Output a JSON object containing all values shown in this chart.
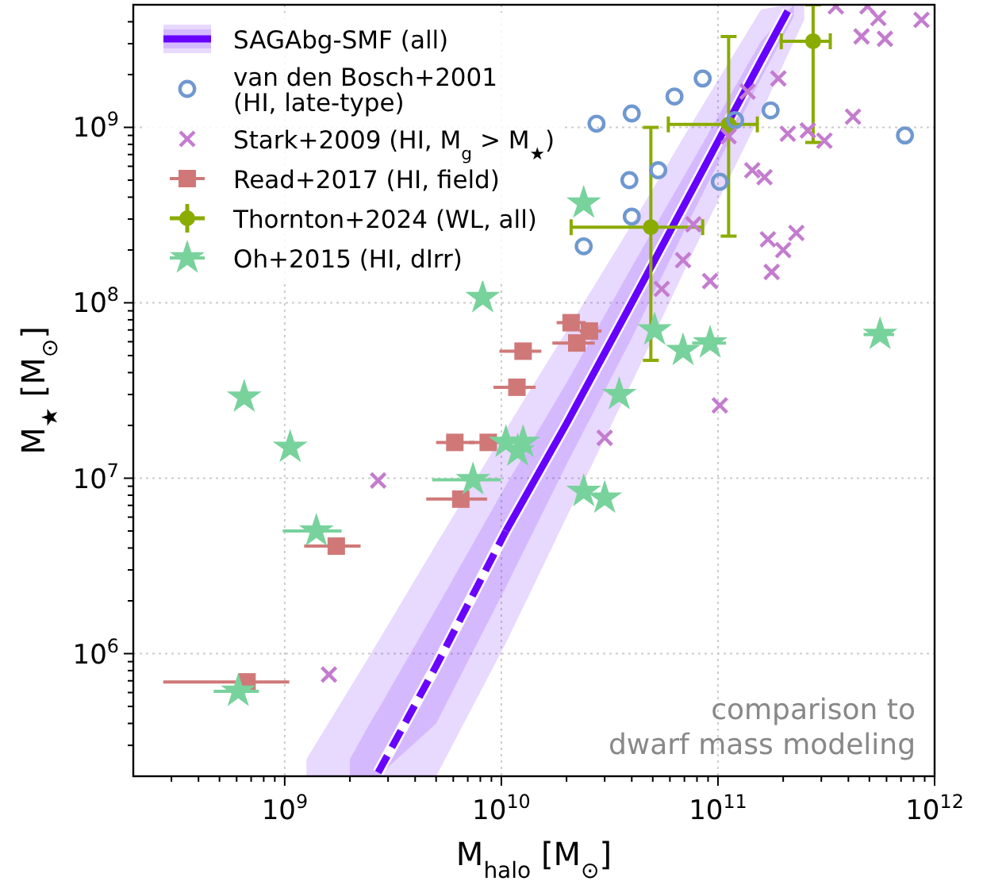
{
  "chart_data": {
    "type": "scatter",
    "xlabel": "M$_{halo}$ [M$_{⊙}$]",
    "ylabel": "M$_{★}$ [M$_{⊙}$]",
    "log": "xy",
    "grid": true,
    "legend": "top left",
    "xlim": [
      200000000.0,
      1000000000000.0
    ],
    "ylim": [
      200000.0,
      5000000000.0
    ],
    "xticks": [
      {
        "value": 300000000.0,
        "label": null
      },
      {
        "value": 400000000.0,
        "label": null
      },
      {
        "value": 500000000.0,
        "label": null
      },
      {
        "value": 600000000.0,
        "label": null
      },
      {
        "value": 700000000.0,
        "label": null
      },
      {
        "value": 800000000.0,
        "label": null
      },
      {
        "value": 900000000.0,
        "label": null
      },
      {
        "value": 1000000000.0,
        "label": "10$^{9}$"
      },
      {
        "value": 2000000000.0,
        "label": null
      },
      {
        "value": 3000000000.0,
        "label": null
      },
      {
        "value": 4000000000.0,
        "label": null
      },
      {
        "value": 5000000000.0,
        "label": null
      },
      {
        "value": 6000000000.0,
        "label": null
      },
      {
        "value": 7000000000.0,
        "label": null
      },
      {
        "value": 8000000000.0,
        "label": null
      },
      {
        "value": 9000000000.0,
        "label": null
      },
      {
        "value": 10000000000.0,
        "label": "10$^{10}$"
      },
      {
        "value": 20000000000.0,
        "label": null
      },
      {
        "value": 30000000000.0,
        "label": null
      },
      {
        "value": 40000000000.0,
        "label": null
      },
      {
        "value": 50000000000.0,
        "label": null
      },
      {
        "value": 60000000000.0,
        "label": null
      },
      {
        "value": 70000000000.0,
        "label": null
      },
      {
        "value": 80000000000.0,
        "label": null
      },
      {
        "value": 90000000000.0,
        "label": null
      },
      {
        "value": 100000000000.0,
        "label": "10$^{11}$"
      },
      {
        "value": 200000000000.0,
        "label": null
      },
      {
        "value": 300000000000.0,
        "label": null
      },
      {
        "value": 400000000000.0,
        "label": null
      },
      {
        "value": 500000000000.0,
        "label": null
      },
      {
        "value": 600000000000.0,
        "label": null
      },
      {
        "value": 700000000000.0,
        "label": null
      },
      {
        "value": 800000000000.0,
        "label": null
      },
      {
        "value": 900000000000.0,
        "label": null
      },
      {
        "value": 1000000000000.0,
        "label": "10$^{12}$"
      }
    ],
    "yticks": [
      {
        "value": 300000.0,
        "label": null
      },
      {
        "value": 400000.0,
        "label": null
      },
      {
        "value": 500000.0,
        "label": null
      },
      {
        "value": 600000.0,
        "label": null
      },
      {
        "value": 700000.0,
        "label": null
      },
      {
        "value": 800000.0,
        "label": null
      },
      {
        "value": 900000.0,
        "label": null
      },
      {
        "value": 1000000.0,
        "label": "10$^{6}$"
      },
      {
        "value": 2000000.0,
        "label": null
      },
      {
        "value": 3000000.0,
        "label": null
      },
      {
        "value": 4000000.0,
        "label": null
      },
      {
        "value": 5000000.0,
        "label": null
      },
      {
        "value": 6000000.0,
        "label": null
      },
      {
        "value": 7000000.0,
        "label": null
      },
      {
        "value": 8000000.0,
        "label": null
      },
      {
        "value": 9000000.0,
        "label": null
      },
      {
        "value": 10000000.0,
        "label": "10$^{7}$"
      },
      {
        "value": 20000000.0,
        "label": null
      },
      {
        "value": 30000000.0,
        "label": null
      },
      {
        "value": 40000000.0,
        "label": null
      },
      {
        "value": 50000000.0,
        "label": null
      },
      {
        "value": 60000000.0,
        "label": null
      },
      {
        "value": 70000000.0,
        "label": null
      },
      {
        "value": 80000000.0,
        "label": null
      },
      {
        "value": 90000000.0,
        "label": null
      },
      {
        "value": 100000000.0,
        "label": "10$^{8}$"
      },
      {
        "value": 200000000.0,
        "label": null
      },
      {
        "value": 300000000.0,
        "label": null
      },
      {
        "value": 400000000.0,
        "label": null
      },
      {
        "value": 500000000.0,
        "label": null
      },
      {
        "value": 600000000.0,
        "label": null
      },
      {
        "value": 700000000.0,
        "label": null
      },
      {
        "value": 800000000.0,
        "label": null
      },
      {
        "value": 900000000.0,
        "label": null
      },
      {
        "value": 1000000000.0,
        "label": "10$^{9}$"
      },
      {
        "value": 2000000000.0,
        "label": null
      },
      {
        "value": 3000000000.0,
        "label": null
      },
      {
        "value": 4000000000.0,
        "label": null
      }
    ],
    "annotations": [
      "comparison to\ndwarf mass modeling"
    ],
    "series": [
      {
        "name": "SAGAbg-SMF (all)",
        "type": "line",
        "color": "#6600ff",
        "line_style": "solid",
        "marker": "none",
        "x": [
          1260000000.0,
          2500000000.0,
          5000000000.0,
          10500000000.0,
          20000000000.0,
          40000000000.0,
          79000000000.0,
          158000000000.0,
          210000000000.0,
          250000000000.0
        ],
        "values": [
          null,
          null,
          null,
          5000000.0,
          20500000.0,
          100000000.0,
          480000000.0,
          2400000000.0,
          4600000000.0,
          null
        ],
        "upper": [
          250000.0,
          1000000.0,
          4200000.0,
          19000000.0,
          69000000.0,
          280000000.0,
          1150000000.0,
          4700000000.0,
          5000000000.0,
          5000000000.0
        ],
        "lower": [
          200000.0,
          200000.0,
          200000.0,
          1150000.0,
          6000000.0,
          35000000.0,
          210000000.0,
          1200000000.0,
          2600000000.0,
          4100000000.0
        ]
      },
      {
        "name": "van den Bosch+2001\n(HI, late-type)",
        "type": "scatter",
        "color": "#6f98d0",
        "marker": "circle",
        "x": [
          27500000000.0,
          40000000000.0,
          63000000000.0,
          85000000000.0,
          175000000000.0,
          120000000000.0,
          730000000000.0,
          39000000000.0,
          53000000000.0,
          102000000000.0,
          40000000000.0,
          24000000000.0
        ],
        "values": [
          1050000000.0,
          1200000000.0,
          1500000000.0,
          1900000000.0,
          1250000000.0,
          1100000000.0,
          900000000.0,
          500000000.0,
          570000000.0,
          490000000.0,
          310000000.0,
          210000000.0
        ]
      },
      {
        "name": "Stark+2009 (HI, M$_{g}$ > M$_{★}$)",
        "type": "scatter",
        "color": "#c47ccf",
        "marker": "cross",
        "x": [
          190000000000.0,
          350000000000.0,
          490000000000.0,
          550000000000.0,
          460000000000.0,
          590000000000.0,
          870000000000.0,
          420000000000.0,
          210000000000.0,
          260000000000.0,
          310000000000.0,
          112000000000.0,
          144000000000.0,
          164000000000.0,
          77000000000.0,
          230000000000.0,
          170000000000.0,
          200000000000.0,
          69000000000.0,
          177000000000.0,
          92000000000.0,
          55000000000.0,
          137000000000.0,
          102000000000.0,
          30000000000.0,
          2700000000.0,
          1600000000.0
        ],
        "values": [
          1900000000.0,
          4900000000.0,
          4900000000.0,
          4200000000.0,
          3300000000.0,
          3200000000.0,
          4100000000.0,
          1150000000.0,
          920000000.0,
          960000000.0,
          840000000.0,
          890000000.0,
          570000000.0,
          520000000.0,
          280000000.0,
          250000000.0,
          230000000.0,
          200000000.0,
          175000000.0,
          150000000.0,
          133000000.0,
          120000000.0,
          1600000000.0,
          26000000.0,
          17000000.0,
          9700000.0,
          760000.0
        ]
      },
      {
        "name": "Read+2017 (HI, field)",
        "type": "scatter",
        "color": "#d07878",
        "marker": "square",
        "x": [
          12600000000.0,
          11800000000.0,
          6100000000.0,
          8700000000.0,
          6500000000.0,
          1730000000.0,
          21000000000.0,
          25500000000.0,
          22300000000.0,
          670000000.0
        ],
        "values": [
          53000000.0,
          33000000.0,
          16000000.0,
          16000000.0,
          7600000.0,
          4100000.0,
          77000000.0,
          69000000.0,
          59000000.0,
          690000.0
        ],
        "xerrors": [
          [
            9800000000.0,
            15300000000.0
          ],
          [
            9200000000.0,
            14400000000.0
          ],
          [
            5000000000.0,
            7500000000.0
          ],
          [
            7100000000.0,
            10900000000.0
          ],
          [
            4500000000.0,
            8600000000.0
          ],
          [
            1230000000.0,
            2240000000.0
          ],
          [
            18000000000.0,
            24500000000.0
          ],
          [
            23000000000.0,
            29000000000.0
          ],
          [
            17200000000.0,
            27000000000.0
          ],
          [
            275000000.0,
            1050000000.0
          ]
        ]
      },
      {
        "name": "Thornton+2024 (WL, all)",
        "type": "scatter",
        "color": "#8aab00",
        "marker": "circle",
        "x": [
          49000000000.0,
          112000000000.0,
          275000000000.0
        ],
        "values": [
          270000000.0,
          1040000000.0,
          3100000000.0
        ],
        "xerrors": [
          [
            21000000000.0,
            85000000000.0
          ],
          [
            59000000000.0,
            152000000000.0
          ],
          [
            196000000000.0,
            330000000000.0
          ]
        ],
        "errors": [
          [
            47000000.0,
            1000000000.0
          ],
          [
            240000000.0,
            3300000000.0
          ],
          [
            820000000.0,
            5000000000.0
          ]
        ]
      },
      {
        "name": "Oh+2015 (HI, dIrr)",
        "type": "scatter",
        "color": "#78d29c",
        "marker": "star",
        "x": [
          8200000000.0,
          650000000.0,
          1060000000.0,
          1400000000.0,
          7400000000.0,
          10500000000.0,
          12600000000.0,
          11900000000.0,
          51000000000.0,
          69000000000.0,
          92000000000.0,
          560000000000.0,
          35000000000.0,
          24000000000.0,
          30000000000.0,
          24000000000.0,
          610000000.0
        ],
        "values": [
          107000000.0,
          29000000.0,
          15000000.0,
          5000000.0,
          9800000.0,
          16000000.0,
          16000000.0,
          14300000.0,
          70000000.0,
          53500000.0,
          59000000.0,
          66000000.0,
          30000000.0,
          8400000.0,
          7700000.0,
          370000000.0,
          610000.0
        ],
        "xerrors": [
          null,
          null,
          null,
          [
            980000000.0,
            1830000000.0
          ],
          [
            4800000000.0,
            9950000000.0
          ],
          null,
          null,
          null,
          null,
          null,
          [
            76000000000.0,
            109000000000.0
          ],
          [
            470000000000.0,
            650000000000.0
          ],
          null,
          null,
          null,
          null,
          [
            470000000.0,
            760000000.0
          ]
        ]
      },
      {
        "type": "line",
        "color": "#6a04ff",
        "line_style": "dashed",
        "marker": "none",
        "x": [
          2000000000.0,
          2500000000.0,
          2700000000.0,
          5000000000.0,
          10500000000.0,
          20000000000.0,
          40000000000.0,
          79000000000.0,
          158000000000.0,
          224000000000.0
        ],
        "values": [
          null,
          null,
          210000.0,
          850000.0,
          5000000.0,
          null,
          null,
          null,
          null,
          null
        ],
        "upper": [
          250000.0,
          410000.0,
          480000.0,
          1800000.0,
          9100000.0,
          35000000.0,
          160000000.0,
          690000000.0,
          3100000000.0,
          5000000000.0
        ],
        "lower": [
          200000.0,
          200000.0,
          200000.0,
          400000.0,
          2400000.0,
          12000000.0,
          63000000.0,
          350000000.0,
          1900000000.0,
          4300000000.0
        ]
      }
    ]
  }
}
